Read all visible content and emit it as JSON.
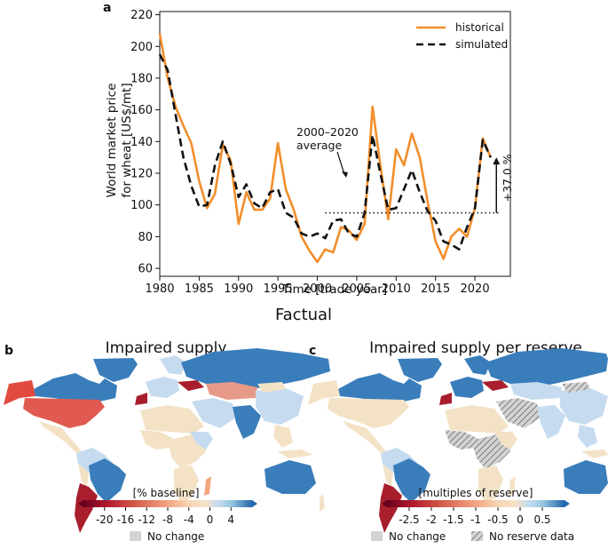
{
  "factual_label": "Factual",
  "panel_a": {
    "letter": "a",
    "chart_data": {
      "type": "line",
      "xlabel": "Time [trade year]",
      "ylabel_line1": "World market price",
      "ylabel_line2": "for wheat [US$/mt]",
      "xlim": [
        1980,
        2024.5
      ],
      "ylim": [
        55,
        222
      ],
      "xticks": [
        1980,
        1985,
        1990,
        1995,
        2000,
        2005,
        2010,
        2015,
        2020
      ],
      "yticks": [
        60,
        80,
        100,
        120,
        140,
        160,
        180,
        200,
        220
      ],
      "series": [
        {
          "name": "historical",
          "color": "#f28e2b",
          "style": "solid",
          "x": [
            1980,
            1981,
            1982,
            1983,
            1984,
            1985,
            1986,
            1987,
            1988,
            1989,
            1990,
            1991,
            1992,
            1993,
            1994,
            1995,
            1996,
            1997,
            1998,
            1999,
            2000,
            2001,
            2002,
            2003,
            2004,
            2005,
            2006,
            2007,
            2008,
            2009,
            2010,
            2011,
            2012,
            2013,
            2014,
            2015,
            2016,
            2017,
            2018,
            2019,
            2020,
            2021,
            2022
          ],
          "values": [
            208,
            180,
            162,
            150,
            139,
            115,
            98,
            107,
            138,
            128,
            88,
            108,
            97,
            97,
            104,
            139,
            110,
            97,
            80,
            71,
            64,
            72,
            70,
            86,
            84,
            78,
            88,
            162,
            125,
            91,
            135,
            125,
            145,
            130,
            102,
            77,
            66,
            80,
            85,
            80,
            98,
            142,
            130
          ]
        },
        {
          "name": "simulated",
          "color": "#111111",
          "style": "dashed",
          "x": [
            1980,
            1981,
            1982,
            1983,
            1984,
            1985,
            1986,
            1987,
            1988,
            1989,
            1990,
            1991,
            1992,
            1993,
            1994,
            1995,
            1996,
            1997,
            1998,
            1999,
            2000,
            2001,
            2002,
            2003,
            2004,
            2005,
            2006,
            2007,
            2008,
            2009,
            2010,
            2011,
            2012,
            2013,
            2014,
            2015,
            2016,
            2017,
            2018,
            2019,
            2020,
            2021,
            2022
          ],
          "values": [
            195,
            185,
            157,
            130,
            112,
            99,
            100,
            125,
            140,
            126,
            105,
            113,
            101,
            98,
            108,
            110,
            95,
            92,
            82,
            80,
            82,
            79,
            90,
            91,
            82,
            80,
            95,
            144,
            120,
            97,
            98,
            110,
            122,
            108,
            96,
            90,
            77,
            75,
            72,
            86,
            98,
            141,
            130
          ]
        }
      ],
      "reference_line": {
        "label_line1": "2000–2020",
        "label_line2": "average",
        "value": 95,
        "x_start": 2001,
        "x_end": 2023
      },
      "annotation": {
        "text": "+37.0 %",
        "from": 95,
        "to": 130,
        "x": 2022.5
      }
    }
  },
  "panel_b": {
    "letter": "b",
    "title": "Impaired supply",
    "colorbar_label": "[% baseline]",
    "colorbar_ticks": [
      "-20",
      "-16",
      "-12",
      "-8",
      "-4",
      "0",
      "4"
    ],
    "legend_no_change": "No change"
  },
  "panel_c": {
    "letter": "c",
    "title": "Impaired supply per reserve",
    "colorbar_label": "[multiples of reserve]",
    "colorbar_ticks": [
      "-2.5",
      "-2",
      "-1.5",
      "-1",
      "-0.5",
      "0",
      "0.5"
    ],
    "legend_no_change": "No change",
    "legend_no_reserve": "No reserve data"
  },
  "colors": {
    "colorbar": [
      "#67001f",
      "#b2182b",
      "#d6604d",
      "#f4a582",
      "#f6d3b2",
      "#f5e3c6",
      "#c6dbef",
      "#92c5de",
      "#4393c3",
      "#2166ac"
    ],
    "no_change": "#d3d3d3",
    "land_base": "#f3e2c6"
  }
}
